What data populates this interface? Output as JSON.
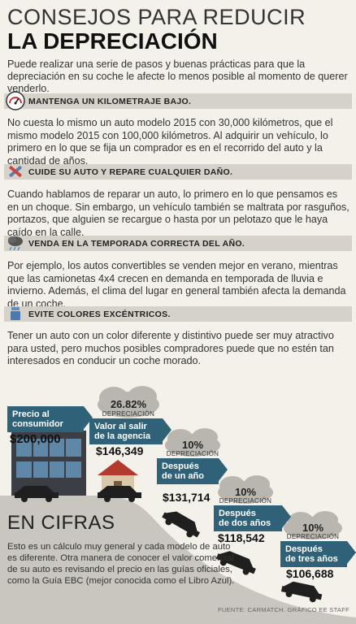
{
  "title_line1": "CONSEJOS PARA REDUCIR",
  "title_line2": "LA DEPRECIACIÓN",
  "intro": "Puede realizar una serie de pasos y buenas prácticas para que la depreciación en su coche le afecte lo menos posible al momento de querer venderlo.",
  "sections": [
    {
      "icon": "speedometer-icon",
      "heading": "MANTENGA UN KILOMETRAJE BAJO.",
      "text": "No cuesta lo mismo un auto modelo 2015 con 30,000 kilómetros, que el mismo modelo 2015 con 100,000 kilómetros. Al adquirir un vehículo, lo primero en lo que se fija un comprador es en el recorrido del auto y la cantidad de años."
    },
    {
      "icon": "repair-tools-icon",
      "heading": "CUIDE SU AUTO Y REPARE CUALQUIER DAÑO.",
      "text": "Cuando hablamos de reparar un auto, lo primero en lo que pensamos es en un choque. Sin embargo, un vehículo también se maltrata por rasguños, portazos, que alguien se recargue o hasta por un pelotazo que le haya caído en la calle."
    },
    {
      "icon": "storm-cloud-icon",
      "heading": "VENDA EN LA TEMPORADA CORRECTA DEL AÑO.",
      "text": "Por ejemplo, los autos convertibles se venden mejor en verano, mientras que las camionetas 4x4 crecen en demanda en temporada de lluvia e invierno. Además, el clima del lugar en general también afecta la demanda de un coche."
    },
    {
      "icon": "paint-bucket-icon",
      "heading": "EVITE COLORES EXCÉNTRICOS.",
      "text": "Tener un auto con un color diferente y distintivo puede ser muy atractivo para usted, pero muchos posibles compradores puede que no estén tan interesados en conducir un coche morado."
    }
  ],
  "cifras": {
    "heading": "EN CIFRAS",
    "text": "Esto es un cálculo muy general y cada modelo de auto es diferente. Otra manera de conocer el valor comercial de su auto es revisando el precio en las guías oficiales, como la Guía EBC (mejor conocida como el Libro Azul)."
  },
  "stages": [
    {
      "label_line1": "Precio al",
      "label_line2": "consumidor",
      "price": "$200,000",
      "pct": null,
      "pct_label": null
    },
    {
      "label_line1": "Valor al salir",
      "label_line2": "de la agencia",
      "price": "$146,349",
      "pct": "26.82%",
      "pct_label": "DEPRECIACIÓN"
    },
    {
      "label_line1": "Después",
      "label_line2": "de un año",
      "price": "$131,714",
      "pct": "10%",
      "pct_label": "DEPRECIACIÓN"
    },
    {
      "label_line1": "Después",
      "label_line2": "de dos años",
      "price": "$118,542",
      "pct": "10%",
      "pct_label": "DEPRECIACIÓN"
    },
    {
      "label_line1": "Después",
      "label_line2": "de tres años",
      "price": "$106,688",
      "pct": "10%",
      "pct_label": "DEPRECIACIÓN"
    }
  ],
  "source": "FUENTE: CARMATCH. GRÁFICO EE STAFF",
  "colors": {
    "banner": "#2f6178",
    "slope": "#c9c6bf",
    "cloud": "#b9b6b0",
    "building": "#3b3f45"
  }
}
